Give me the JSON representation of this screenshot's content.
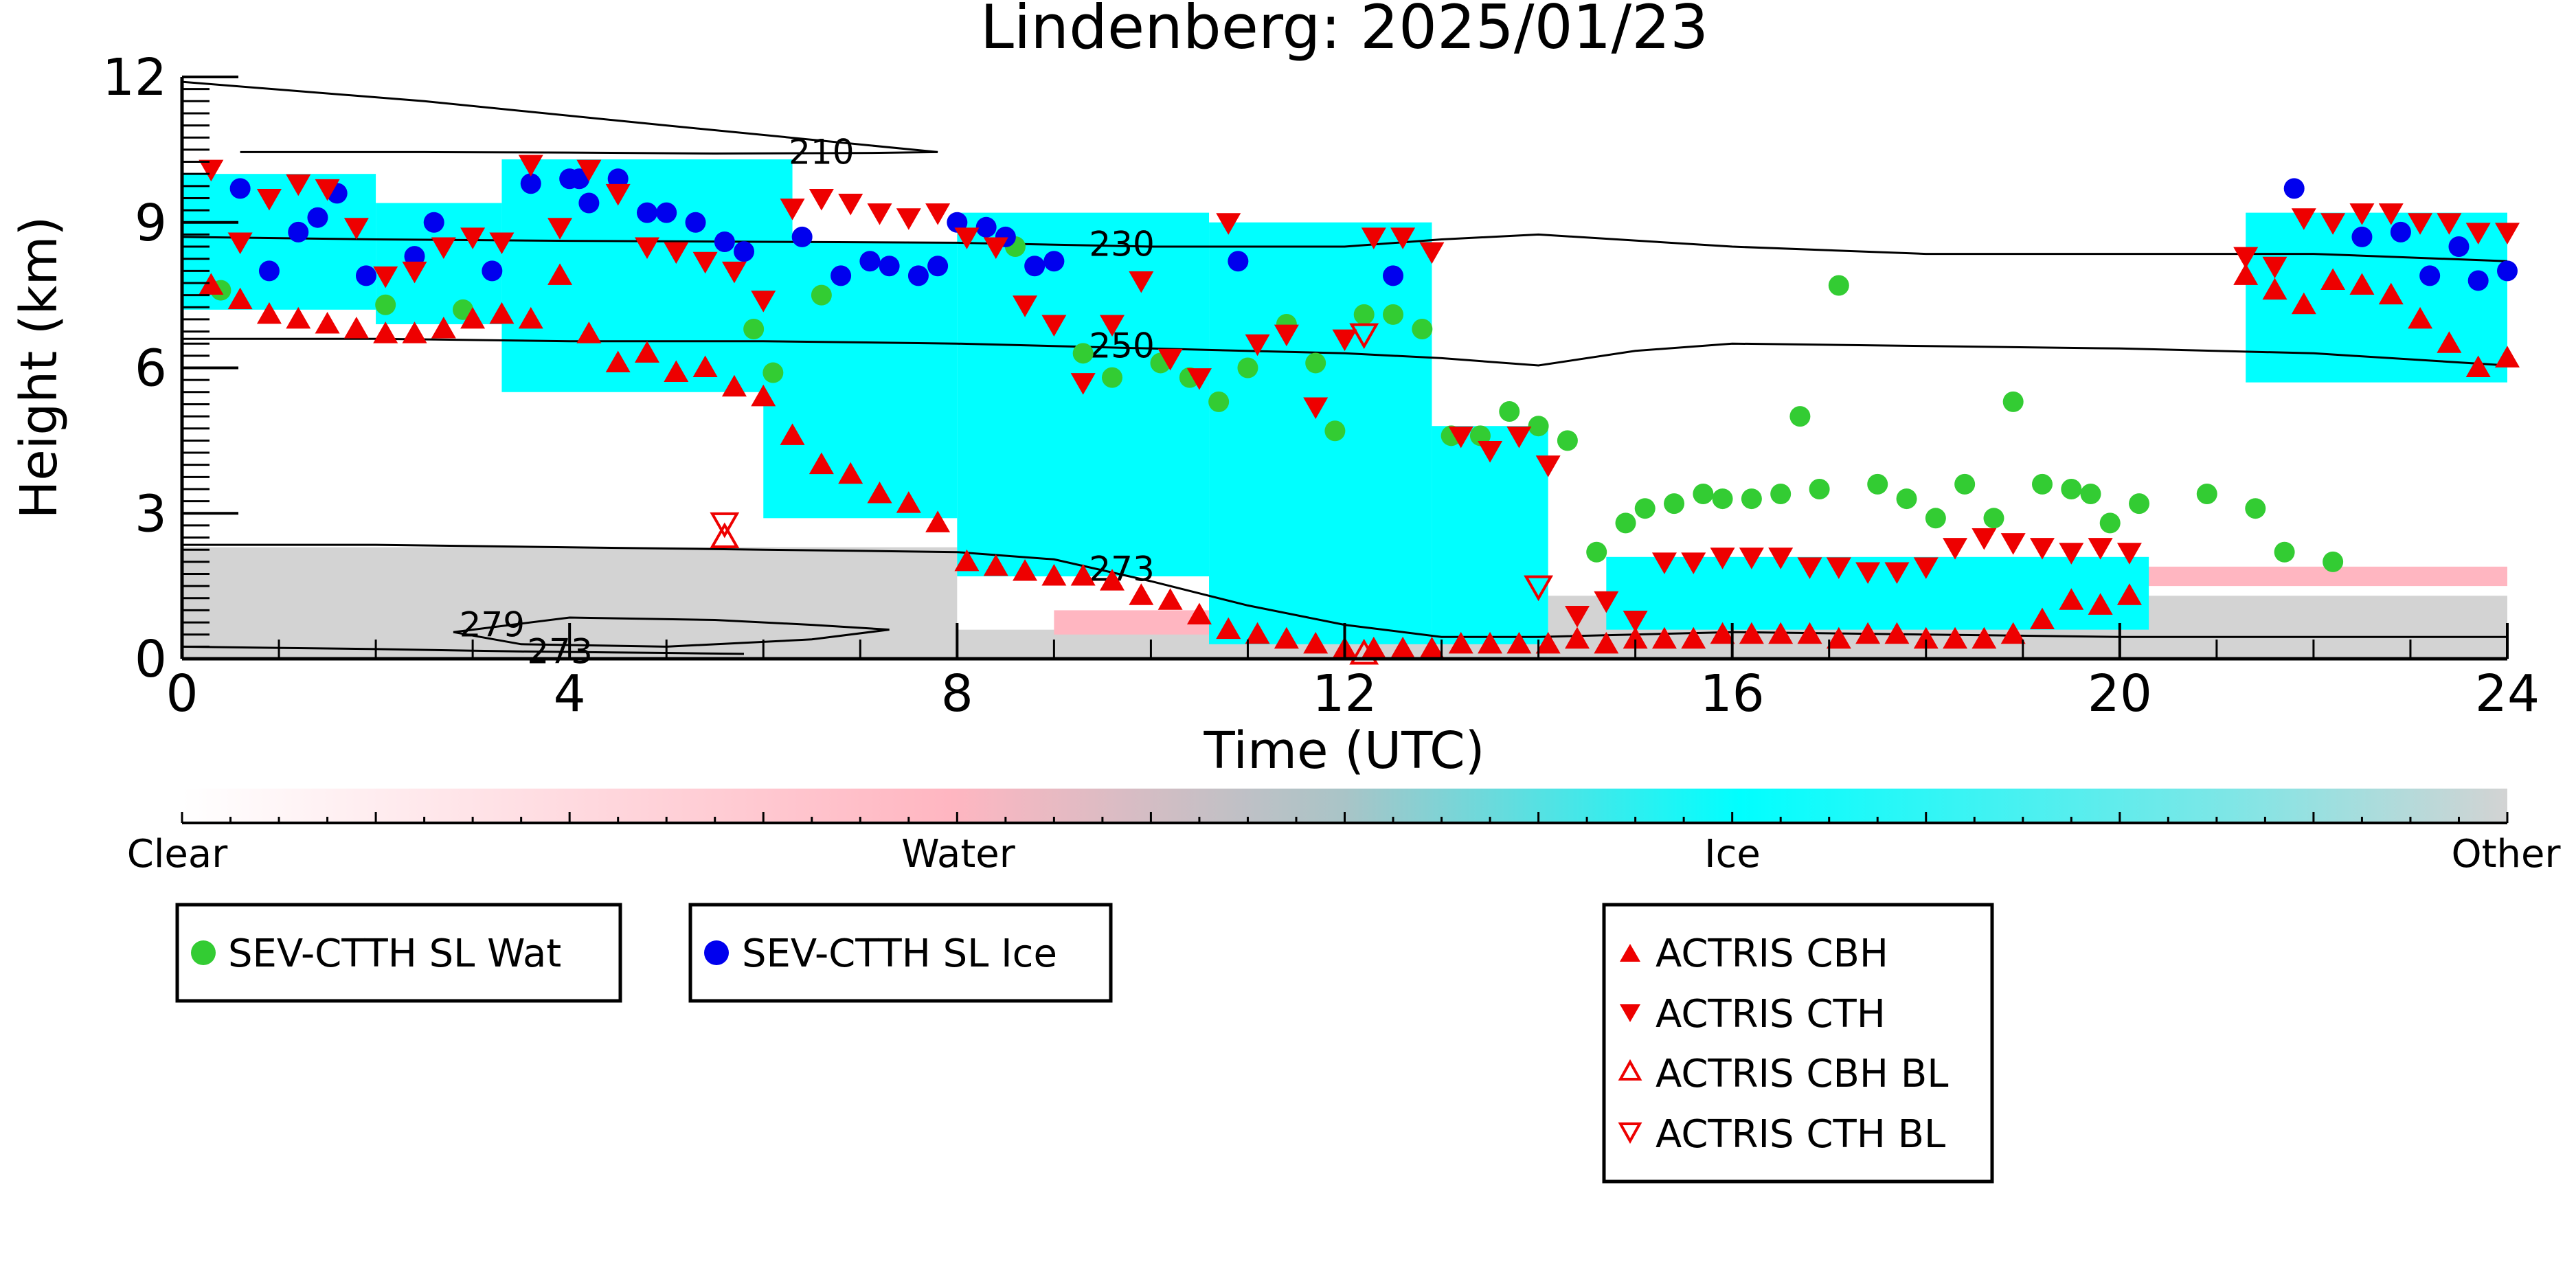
{
  "chart_data": {
    "type": "scatter",
    "title": "Lindenberg: 2025/01/23",
    "xlabel": "Time (UTC)",
    "ylabel": "Height (km)",
    "xlim": [
      0,
      24
    ],
    "ylim": [
      0,
      12
    ],
    "x_ticks": [
      "0",
      "4",
      "8",
      "12",
      "16",
      "20",
      "24"
    ],
    "y_ticks": [
      "0",
      "3",
      "6",
      "9",
      "12"
    ],
    "colorbar": {
      "labels": [
        "Clear",
        "Water",
        "Ice",
        "Other"
      ],
      "colors": [
        "#ffffff",
        "#ffb6c1",
        "#00ffff",
        "#d3d3d3"
      ]
    },
    "isotherms": [
      {
        "label": "210",
        "x": [
          0.6,
          2.5,
          4,
          5.5,
          7,
          7.8
        ],
        "y": [
          10.45,
          10.45,
          10.44,
          10.42,
          10.43,
          10.45
        ],
        "closed_upper": {
          "x": [
            0,
            2.5,
            5,
            7.8
          ],
          "y": [
            11.9,
            11.5,
            11.0,
            10.45
          ]
        }
      },
      {
        "label": "230",
        "x": [
          0,
          2,
          4,
          6,
          8,
          10,
          12,
          13,
          14,
          16,
          18,
          20,
          22,
          24
        ],
        "y": [
          8.7,
          8.65,
          8.62,
          8.6,
          8.58,
          8.5,
          8.5,
          8.65,
          8.75,
          8.5,
          8.35,
          8.35,
          8.35,
          8.2
        ]
      },
      {
        "label": "250",
        "x": [
          0,
          2,
          4,
          6,
          8,
          10,
          12,
          13,
          14,
          15,
          16,
          18,
          20,
          22,
          24
        ],
        "y": [
          6.6,
          6.6,
          6.55,
          6.55,
          6.5,
          6.4,
          6.3,
          6.2,
          6.05,
          6.35,
          6.5,
          6.45,
          6.4,
          6.3,
          6.05
        ]
      },
      {
        "label": "273",
        "x": [
          0,
          2,
          4,
          6,
          8,
          9,
          10,
          11,
          12,
          13,
          14,
          16,
          18,
          20,
          22,
          24
        ],
        "y": [
          2.35,
          2.35,
          2.3,
          2.25,
          2.2,
          2.05,
          1.6,
          1.1,
          0.7,
          0.45,
          0.45,
          0.55,
          0.5,
          0.45,
          0.45,
          0.45
        ]
      },
      {
        "label": "279",
        "x": [
          2.8,
          4,
          5.5,
          6.5,
          7.3,
          6.5,
          5,
          3.5,
          2.8
        ],
        "y": [
          0.55,
          0.85,
          0.8,
          0.7,
          0.6,
          0.4,
          0.25,
          0.3,
          0.55
        ]
      },
      {
        "label": "273",
        "x": [
          0,
          2,
          3.5,
          5,
          5.8
        ],
        "y": [
          0.25,
          0.2,
          0.15,
          0.12,
          0.1
        ]
      }
    ],
    "series": [
      {
        "name": "SEV-CTTH SL Wat",
        "marker": "circle",
        "color": "#33cc33",
        "x": [
          0.4,
          2.1,
          2.9,
          5.9,
          6.1,
          6.6,
          8.6,
          9.3,
          9.6,
          10.1,
          10.4,
          10.7,
          11.0,
          11.4,
          11.7,
          11.9,
          12.2,
          12.5,
          12.8,
          13.1,
          13.4,
          13.7,
          14.0,
          14.3,
          14.6,
          14.9,
          15.1,
          15.4,
          15.7,
          15.9,
          16.2,
          16.5,
          16.9,
          17.1,
          17.5,
          17.8,
          18.1,
          18.4,
          18.7,
          18.9,
          19.2,
          19.5,
          19.7,
          19.9,
          20.2,
          20.9,
          21.4,
          21.7,
          22.2,
          16.7
        ],
        "y": [
          7.6,
          7.3,
          7.2,
          6.8,
          5.9,
          7.5,
          8.5,
          6.3,
          5.8,
          6.1,
          5.8,
          5.3,
          6.0,
          6.9,
          6.1,
          4.7,
          7.1,
          7.1,
          6.8,
          4.6,
          4.6,
          5.1,
          4.8,
          4.5,
          2.2,
          2.8,
          3.1,
          3.2,
          3.4,
          3.3,
          3.3,
          3.4,
          3.5,
          7.7,
          3.6,
          3.3,
          2.9,
          3.6,
          2.9,
          5.3,
          3.6,
          3.5,
          3.4,
          2.8,
          3.2,
          3.4,
          3.1,
          2.2,
          2.0,
          5.0
        ],
        "note": "approximate"
      },
      {
        "name": "SEV-CTTH SL Ice",
        "marker": "circle",
        "color": "#0000ee",
        "x": [
          0.6,
          0.9,
          1.2,
          1.4,
          1.6,
          1.9,
          2.4,
          2.6,
          3.2,
          3.6,
          4.0,
          4.2,
          4.5,
          4.8,
          5.0,
          5.3,
          5.6,
          5.8,
          6.4,
          6.8,
          7.1,
          7.3,
          7.6,
          7.8,
          8.0,
          8.3,
          8.5,
          8.8,
          9.0,
          10.9,
          12.5,
          21.8,
          22.5,
          22.9,
          23.2,
          23.5,
          23.7,
          24.0,
          4.1
        ],
        "y": [
          9.7,
          8.0,
          8.8,
          9.1,
          9.6,
          7.9,
          8.3,
          9.0,
          8.0,
          9.8,
          9.9,
          9.4,
          9.9,
          9.2,
          9.2,
          9.0,
          8.6,
          8.4,
          8.7,
          7.9,
          8.2,
          8.1,
          7.9,
          8.1,
          9.0,
          8.9,
          8.7,
          8.1,
          8.2,
          8.2,
          7.9,
          9.7,
          8.7,
          8.8,
          7.9,
          8.5,
          7.8,
          8.0,
          9.9
        ],
        "note": "approximate"
      },
      {
        "name": "ACTRIS CBH",
        "marker": "triangle-up",
        "color": "#ee0000",
        "x": [
          0.3,
          0.6,
          0.9,
          1.2,
          1.5,
          1.8,
          2.1,
          2.4,
          2.7,
          3.0,
          3.3,
          3.6,
          3.9,
          4.2,
          4.5,
          4.8,
          5.1,
          5.4,
          5.7,
          6.0,
          6.3,
          6.6,
          6.9,
          7.2,
          7.5,
          7.8,
          8.1,
          8.4,
          8.7,
          9.0,
          9.3,
          9.6,
          9.9,
          10.2,
          10.5,
          10.8,
          11.1,
          11.4,
          11.7,
          12.0,
          12.3,
          12.6,
          12.9,
          13.2,
          13.5,
          13.8,
          14.1,
          14.4,
          14.7,
          15.0,
          15.3,
          15.6,
          15.9,
          16.2,
          16.5,
          16.8,
          17.1,
          17.4,
          17.7,
          18.0,
          18.3,
          18.6,
          18.9,
          19.2,
          19.5,
          19.8,
          20.1,
          21.3,
          21.6,
          21.9,
          22.2,
          22.5,
          22.8,
          23.1,
          23.4,
          23.7,
          24.0
        ],
        "y": [
          7.7,
          7.4,
          7.1,
          7.0,
          6.9,
          6.8,
          6.7,
          6.7,
          6.8,
          7.0,
          7.1,
          7.0,
          7.9,
          6.7,
          6.1,
          6.3,
          5.9,
          6.0,
          5.6,
          5.4,
          4.6,
          4.0,
          3.8,
          3.4,
          3.2,
          2.8,
          2.0,
          1.9,
          1.8,
          1.7,
          1.7,
          1.6,
          1.3,
          1.2,
          0.9,
          0.6,
          0.5,
          0.4,
          0.3,
          0.2,
          0.2,
          0.2,
          0.2,
          0.3,
          0.3,
          0.3,
          0.3,
          0.4,
          0.3,
          0.4,
          0.4,
          0.4,
          0.5,
          0.5,
          0.5,
          0.5,
          0.4,
          0.5,
          0.5,
          0.4,
          0.4,
          0.4,
          0.5,
          0.8,
          1.2,
          1.1,
          1.3,
          7.9,
          7.6,
          7.3,
          7.8,
          7.7,
          7.5,
          7.0,
          6.5,
          6.0,
          6.2
        ],
        "note": "approximate"
      },
      {
        "name": "ACTRIS CTH",
        "marker": "triangle-down",
        "color": "#ee0000",
        "x": [
          0.3,
          0.6,
          0.9,
          1.2,
          1.5,
          1.8,
          2.1,
          2.4,
          2.7,
          3.0,
          3.3,
          3.6,
          3.9,
          4.2,
          4.5,
          4.8,
          5.1,
          5.4,
          5.7,
          6.0,
          6.3,
          6.6,
          6.9,
          7.2,
          7.5,
          7.8,
          8.1,
          8.4,
          8.7,
          9.0,
          9.3,
          9.6,
          9.9,
          10.2,
          10.5,
          10.8,
          11.1,
          11.4,
          11.7,
          12.0,
          12.3,
          12.6,
          12.9,
          13.2,
          13.5,
          13.8,
          14.1,
          14.4,
          14.7,
          15.0,
          15.3,
          15.6,
          15.9,
          16.2,
          16.5,
          16.8,
          17.1,
          17.4,
          17.7,
          18.0,
          18.3,
          18.6,
          18.9,
          19.2,
          19.5,
          19.8,
          20.1,
          21.3,
          21.6,
          21.9,
          22.2,
          22.5,
          22.8,
          23.1,
          23.4,
          23.7,
          24.0
        ],
        "y": [
          10.1,
          8.6,
          9.5,
          9.8,
          9.7,
          8.9,
          7.9,
          8.0,
          8.5,
          8.7,
          8.6,
          10.2,
          8.9,
          10.1,
          9.6,
          8.5,
          8.4,
          8.2,
          8.0,
          7.4,
          9.3,
          9.5,
          9.4,
          9.2,
          9.1,
          9.2,
          8.7,
          8.5,
          7.3,
          6.9,
          5.7,
          6.9,
          7.8,
          6.2,
          5.8,
          9.0,
          6.5,
          6.7,
          5.2,
          6.6,
          8.7,
          8.7,
          8.4,
          4.6,
          4.3,
          4.6,
          4.0,
          0.9,
          1.2,
          0.8,
          2.0,
          2.0,
          2.1,
          2.1,
          2.1,
          1.9,
          1.9,
          1.8,
          1.8,
          1.9,
          2.3,
          2.5,
          2.4,
          2.3,
          2.2,
          2.3,
          2.2,
          8.3,
          8.1,
          9.1,
          9.0,
          9.2,
          9.2,
          9.0,
          9.0,
          8.8,
          8.8
        ],
        "note": "approximate"
      },
      {
        "name": "ACTRIS CBH BL",
        "marker": "triangle-up-open",
        "color": "#ee0000",
        "x": [
          5.6,
          12.2
        ],
        "y": [
          2.5,
          0.1
        ]
      },
      {
        "name": "ACTRIS CTH BL",
        "marker": "triangle-down-open",
        "color": "#ee0000",
        "x": [
          5.6,
          12.2,
          14.0
        ],
        "y": [
          2.8,
          6.7,
          1.5
        ]
      }
    ],
    "background_field": {
      "description_free": true,
      "ice_blocks": [
        {
          "t0": 0,
          "t1": 2.0,
          "h0": 7.2,
          "h1": 10.0
        },
        {
          "t0": 2.0,
          "t1": 3.3,
          "h0": 6.9,
          "h1": 9.4
        },
        {
          "t0": 3.3,
          "t1": 6.3,
          "h0": 5.5,
          "h1": 10.3
        },
        {
          "t0": 6.0,
          "t1": 8.0,
          "h0": 2.9,
          "h1": 8.6
        },
        {
          "t0": 8.0,
          "t1": 10.6,
          "h0": 1.7,
          "h1": 9.2
        },
        {
          "t0": 10.6,
          "t1": 12.9,
          "h0": 0.3,
          "h1": 9.0
        },
        {
          "t0": 12.9,
          "t1": 14.1,
          "h0": 0.3,
          "h1": 4.8
        },
        {
          "t0": 14.7,
          "t1": 20.3,
          "h0": 0.6,
          "h1": 2.1
        },
        {
          "t0": 21.3,
          "t1": 24.0,
          "h0": 5.7,
          "h1": 9.2
        }
      ],
      "water_blocks": [
        {
          "t0": 9.0,
          "t1": 12.0,
          "h0": 0.5,
          "h1": 1.0
        },
        {
          "t0": 20.2,
          "t1": 24.0,
          "h0": 1.5,
          "h1": 1.9
        }
      ],
      "other_blocks": [
        {
          "t0": 0,
          "t1": 8.0,
          "h0": 0.0,
          "h1": 2.3
        },
        {
          "t0": 8.0,
          "t1": 14.1,
          "h0": 0.0,
          "h1": 0.6
        },
        {
          "t0": 14.1,
          "t1": 24.0,
          "h0": 0.0,
          "h1": 1.3
        }
      ]
    }
  },
  "legends": {
    "left": [
      "SEV-CTTH SL Wat"
    ],
    "middle": [
      "SEV-CTTH SL Ice"
    ],
    "right": [
      "ACTRIS CBH",
      "ACTRIS CTH",
      "ACTRIS CBH BL",
      "ACTRIS CTH BL"
    ]
  }
}
